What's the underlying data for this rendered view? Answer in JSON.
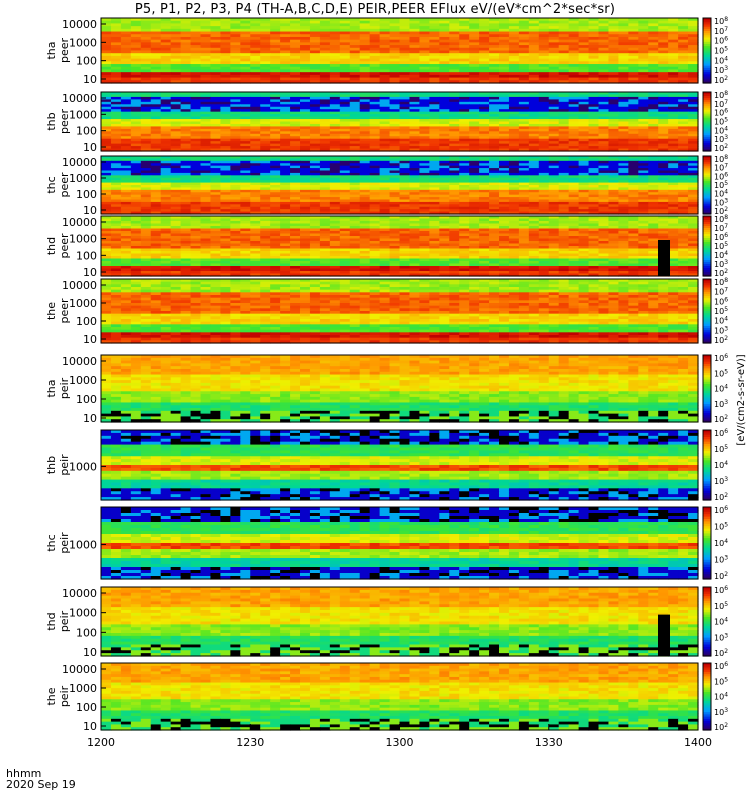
{
  "chart_data": {
    "type": "heatmap",
    "title": "P5, P1, P2, P3, P4 (TH-A,B,C,D,E) PEIR,PEER EFlux eV/(eV*cm^2*sec*sr)",
    "time_format": "hhmm",
    "date": "2020 Sep 19",
    "x_ticks": [
      "1200",
      "1230",
      "1300",
      "1330",
      "1400"
    ],
    "x_range_minutes": [
      0,
      120
    ],
    "colorscale": "rainbow (blue-green-yellow-red)",
    "colorbar_label": "[eV/(cm2-s-sr-eV)]",
    "colorbar_log": true,
    "panels": [
      {
        "probe": "tha",
        "species": "peer",
        "ylabel_probe": "tha",
        "ylabel_species": "peer",
        "yticks": [
          "10",
          "100",
          "1000",
          "10000"
        ],
        "ylog": true,
        "colorbar_ticks": [
          "10^2",
          "10^3",
          "10^4",
          "10^5",
          "10^6",
          "10^7",
          "10^8"
        ]
      },
      {
        "probe": "thb",
        "species": "peer",
        "ylabel_probe": "thb",
        "ylabel_species": "peer",
        "yticks": [
          "10",
          "100",
          "1000",
          "10000"
        ],
        "ylog": true,
        "colorbar_ticks": [
          "10^2",
          "10^3",
          "10^4",
          "10^5",
          "10^6",
          "10^7",
          "10^8"
        ]
      },
      {
        "probe": "thc",
        "species": "peer",
        "ylabel_probe": "thc",
        "ylabel_species": "peer",
        "yticks": [
          "10",
          "100",
          "1000",
          "10000"
        ],
        "ylog": true,
        "colorbar_ticks": [
          "10^2",
          "10^3",
          "10^4",
          "10^5",
          "10^6",
          "10^7",
          "10^8"
        ]
      },
      {
        "probe": "thd",
        "species": "peer",
        "ylabel_probe": "thd",
        "ylabel_species": "peer",
        "yticks": [
          "10",
          "100",
          "1000",
          "10000"
        ],
        "ylog": true,
        "colorbar_ticks": [
          "10^2",
          "10^3",
          "10^4",
          "10^5",
          "10^6",
          "10^7",
          "10^8"
        ]
      },
      {
        "probe": "the",
        "species": "peer",
        "ylabel_probe": "the",
        "ylabel_species": "peer",
        "yticks": [
          "10",
          "100",
          "1000",
          "10000"
        ],
        "ylog": true,
        "colorbar_ticks": [
          "10^2",
          "10^3",
          "10^4",
          "10^5",
          "10^6",
          "10^7",
          "10^8"
        ]
      },
      {
        "probe": "tha",
        "species": "peir",
        "ylabel_probe": "tha",
        "ylabel_species": "peir",
        "yticks": [
          "10",
          "100",
          "1000",
          "10000"
        ],
        "ylog": true,
        "colorbar_ticks": [
          "10^2",
          "10^3",
          "10^4",
          "10^5",
          "10^6"
        ]
      },
      {
        "probe": "thb",
        "species": "peir",
        "ylabel_probe": "thb",
        "ylabel_species": "peir",
        "yticks": [
          "1000"
        ],
        "ylog": true,
        "colorbar_ticks": [
          "10^2",
          "10^3",
          "10^4",
          "10^5",
          "10^6"
        ]
      },
      {
        "probe": "thc",
        "species": "peir",
        "ylabel_probe": "thc",
        "ylabel_species": "peir",
        "yticks": [
          "1000"
        ],
        "ylog": true,
        "colorbar_ticks": [
          "10^2",
          "10^3",
          "10^4",
          "10^5",
          "10^6"
        ]
      },
      {
        "probe": "thd",
        "species": "peir",
        "ylabel_probe": "thd",
        "ylabel_species": "peir",
        "yticks": [
          "10",
          "100",
          "1000",
          "10000"
        ],
        "ylog": true,
        "colorbar_ticks": [
          "10^2",
          "10^3",
          "10^4",
          "10^5",
          "10^6"
        ]
      },
      {
        "probe": "the",
        "species": "peir",
        "ylabel_probe": "the",
        "ylabel_species": "peir",
        "yticks": [
          "10",
          "100",
          "1000",
          "10000"
        ],
        "ylog": true,
        "colorbar_ticks": [
          "10^2",
          "10^3",
          "10^4",
          "10^5",
          "10^6"
        ]
      }
    ]
  }
}
